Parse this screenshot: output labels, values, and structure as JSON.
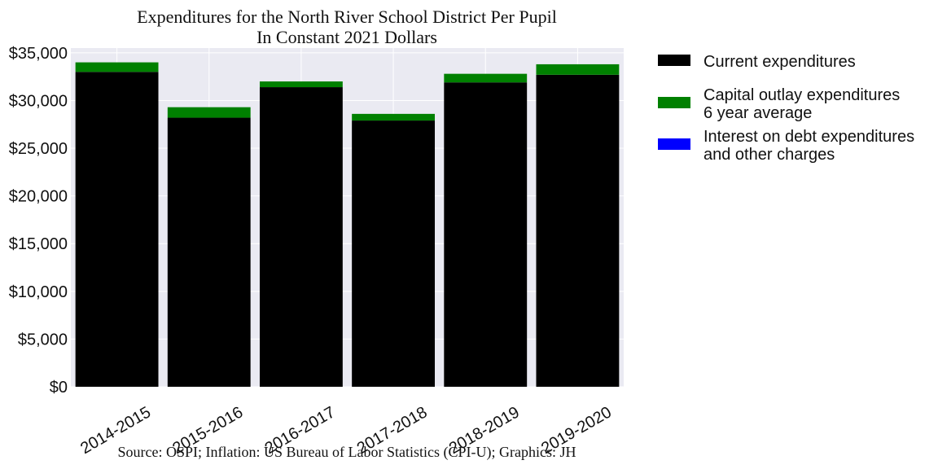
{
  "chart_data": {
    "type": "bar",
    "stacked": true,
    "title": [
      "Expenditures for the North River School District Per Pupil",
      "In Constant 2021 Dollars"
    ],
    "categories": [
      "2014-2015",
      "2015-2016",
      "2016-2017",
      "2017-2018",
      "2018-2019",
      "2019-2020"
    ],
    "series": [
      {
        "name": "Current expenditures",
        "color": "#000000",
        "values": [
          33000,
          28200,
          31400,
          27900,
          31900,
          32700
        ]
      },
      {
        "name": "Capital outlay expenditures\n6 year average",
        "color": "#008000",
        "values": [
          1000,
          1100,
          600,
          700,
          900,
          1100
        ]
      },
      {
        "name": "Interest on debt expenditures\nand other charges",
        "color": "#0000ff",
        "values": [
          0,
          0,
          0,
          0,
          0,
          0
        ]
      }
    ],
    "ylim": [
      0,
      35500
    ],
    "yticks": [
      0,
      5000,
      10000,
      15000,
      20000,
      25000,
      30000,
      35000
    ],
    "ytick_labels": [
      "$0",
      "$5,000",
      "$10,000",
      "$15,000",
      "$20,000",
      "$25,000",
      "$30,000",
      "$35,000"
    ],
    "xlabel": "",
    "ylabel": "",
    "grid": true,
    "legend_position": "outside-right",
    "background_color": "#eaeaf2",
    "grid_color": "#ffffff",
    "source_note": "Source: OSPI; Inflation: US Bureau of Labor Statistics (CPI-U); Graphics: JH"
  }
}
